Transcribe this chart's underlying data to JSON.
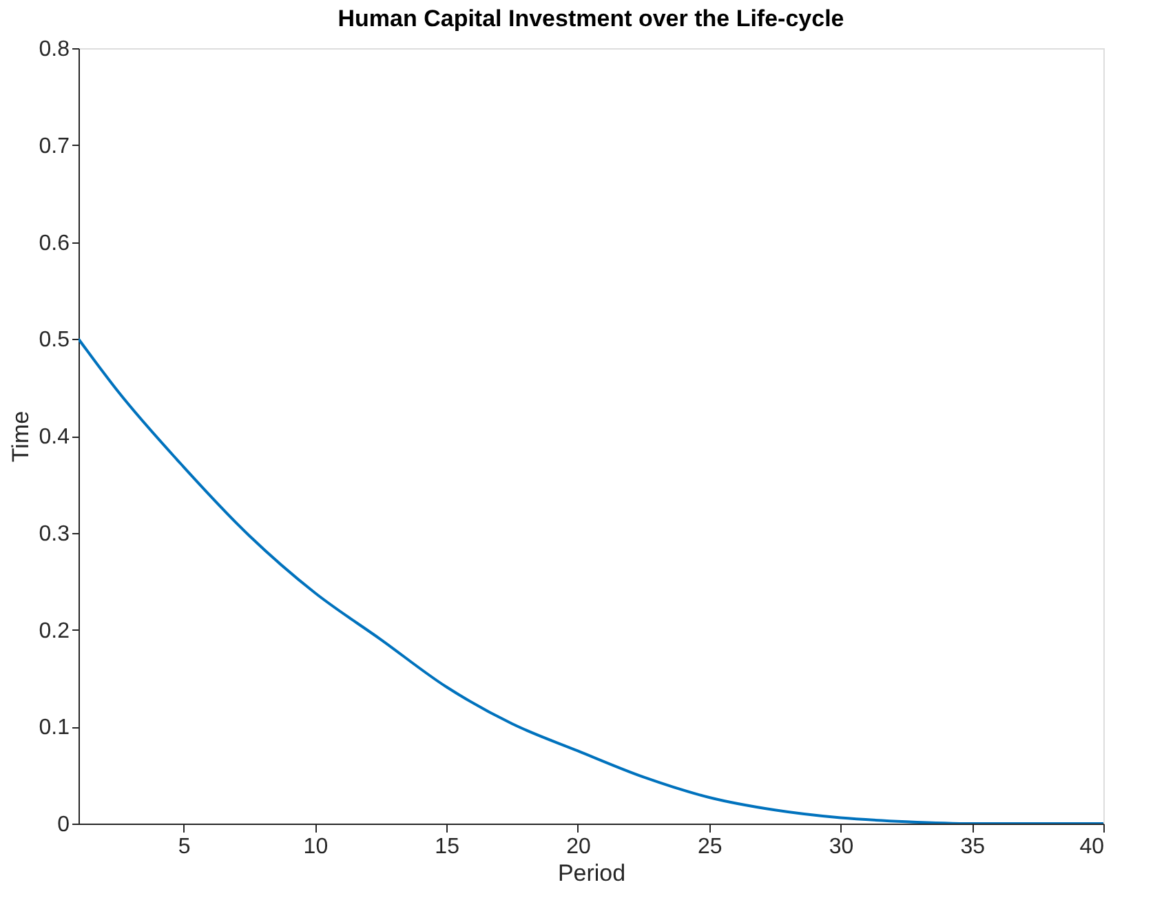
{
  "chart_data": {
    "type": "line",
    "title": "Human Capital Investment over the Life-cycle",
    "xlabel": "Period",
    "ylabel": "Time",
    "x": [
      1,
      2.5,
      5,
      7.5,
      10,
      12.5,
      15,
      17.5,
      20,
      22.5,
      25,
      27.5,
      30,
      32.5,
      35,
      37.5,
      40
    ],
    "series": [
      {
        "color": "#0072bd",
        "values": [
          0.5,
          0.446,
          0.368,
          0.297,
          0.238,
          0.19,
          0.141,
          0.103,
          0.075,
          0.048,
          0.027,
          0.014,
          0.006,
          0.002,
          0.0,
          0.0,
          0.0
        ]
      }
    ],
    "xlim": [
      1,
      40
    ],
    "xticks": [
      5,
      10,
      15,
      20,
      25,
      30,
      35,
      40
    ],
    "ylim": [
      0,
      0.8
    ],
    "yticks": [
      0,
      0.1,
      0.2,
      0.3,
      0.4,
      0.5,
      0.6,
      0.7,
      0.8
    ],
    "grid": false,
    "legend": false,
    "marker": "none",
    "line_style": "solid"
  }
}
